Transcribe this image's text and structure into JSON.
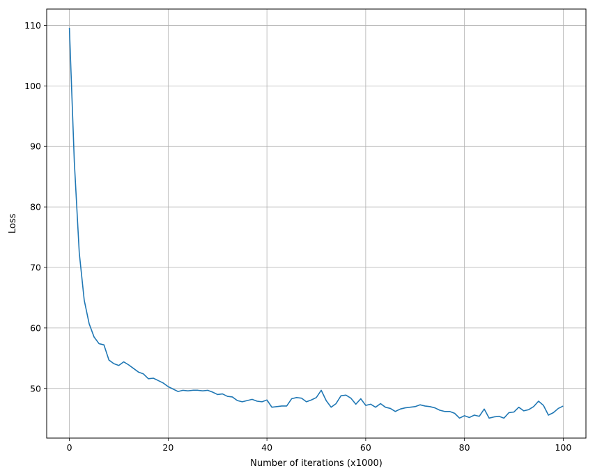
{
  "chart_data": {
    "type": "line",
    "title": "",
    "xlabel": "Number of iterations (x1000)",
    "ylabel": "Loss",
    "xlim": [
      -4.6,
      104.6
    ],
    "ylim": [
      41.8,
      112.7
    ],
    "xticks": [
      0,
      20,
      40,
      60,
      80,
      100
    ],
    "yticks": [
      50,
      60,
      70,
      80,
      90,
      100,
      110
    ],
    "grid": true,
    "legend": "none",
    "series_color": "#1f77b4",
    "series": [
      {
        "x": [
          0,
          1,
          2,
          3,
          4,
          5,
          6,
          7,
          8,
          9,
          10,
          11,
          12,
          13,
          14,
          15,
          16,
          17,
          18,
          19,
          20,
          21,
          22,
          23,
          24,
          25,
          26,
          27,
          28,
          29,
          30,
          31,
          32,
          33,
          34,
          35,
          36,
          37,
          38,
          39,
          40,
          41,
          42,
          43,
          44,
          45,
          46,
          47,
          48,
          49,
          50,
          51,
          52,
          53,
          54,
          55,
          56,
          57,
          58,
          59,
          60,
          61,
          62,
          63,
          64,
          65,
          66,
          67,
          68,
          69,
          70,
          71,
          72,
          73,
          74,
          75,
          76,
          77,
          78,
          79,
          80,
          81,
          82,
          83,
          84,
          85,
          86,
          87,
          88,
          89,
          90,
          91,
          92,
          93,
          94,
          95,
          96,
          97,
          98,
          99,
          100
        ],
        "values": [
          109.6,
          87.4,
          72.4,
          64.6,
          60.7,
          58.5,
          57.4,
          57.2,
          54.7,
          54.1,
          53.8,
          54.4,
          53.9,
          53.3,
          52.7,
          52.4,
          51.6,
          51.7,
          51.3,
          50.9,
          50.3,
          49.9,
          49.5,
          49.7,
          49.6,
          49.7,
          49.7,
          49.6,
          49.7,
          49.4,
          49.0,
          49.1,
          48.7,
          48.6,
          48.0,
          47.8,
          48.0,
          48.2,
          47.9,
          47.8,
          48.1,
          46.9,
          47.0,
          47.1,
          47.1,
          48.3,
          48.5,
          48.4,
          47.8,
          48.1,
          48.5,
          49.7,
          48.0,
          46.9,
          47.5,
          48.8,
          48.9,
          48.4,
          47.4,
          48.3,
          47.2,
          47.4,
          46.9,
          47.5,
          46.9,
          46.7,
          46.2,
          46.6,
          46.8,
          46.9,
          47.0,
          47.3,
          47.1,
          47.0,
          46.8,
          46.4,
          46.2,
          46.2,
          45.9,
          45.1,
          45.5,
          45.2,
          45.6,
          45.4,
          46.6,
          45.1,
          45.3,
          45.4,
          45.1,
          46.0,
          46.1,
          46.9,
          46.3,
          46.5,
          47.0,
          47.9,
          47.2,
          45.6,
          46.0,
          46.7,
          47.1
        ]
      }
    ]
  }
}
